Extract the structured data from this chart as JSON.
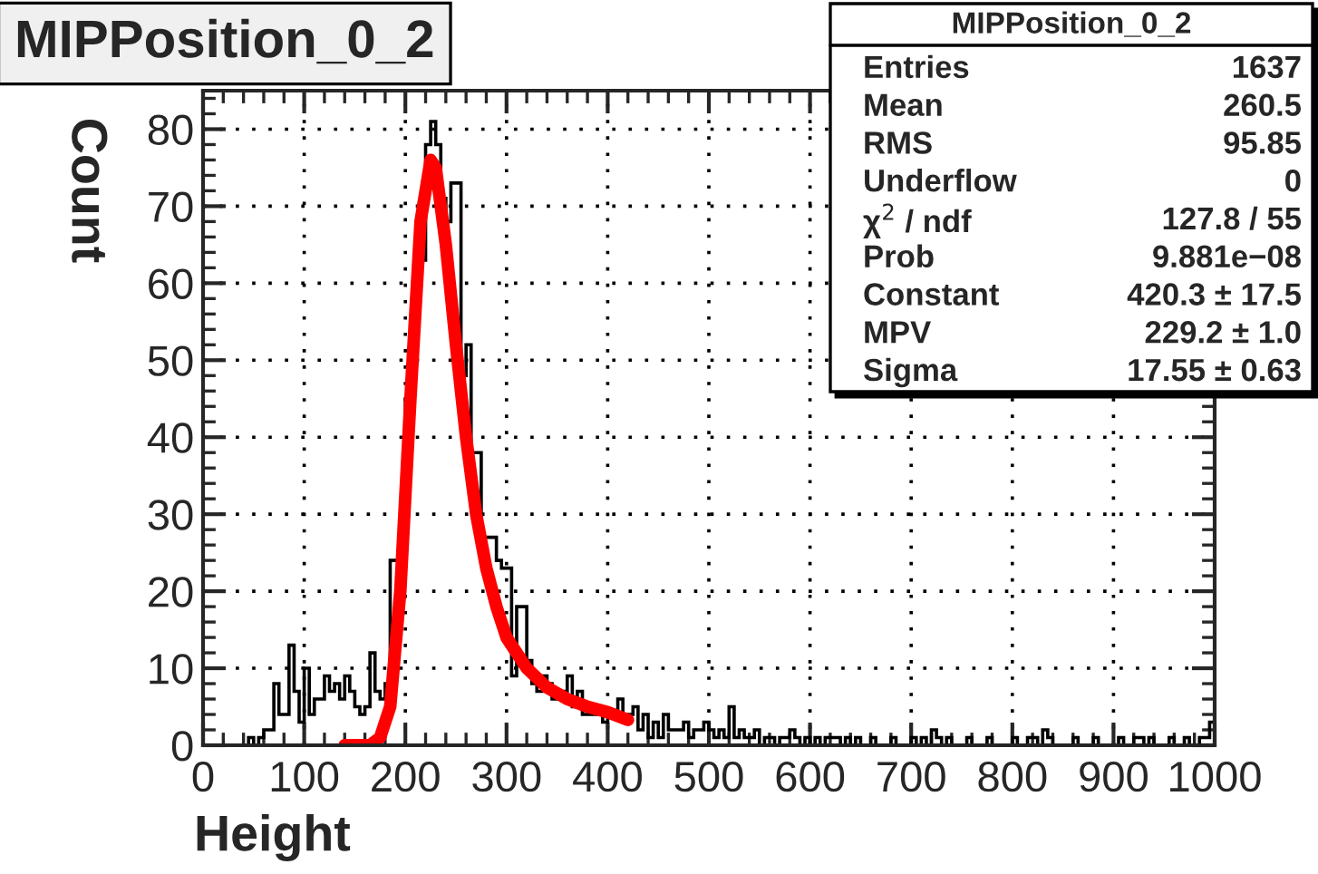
{
  "chart_data": {
    "type": "histogram",
    "title": "MIPPosition_0_2",
    "xlabel": "Height",
    "ylabel": "Count",
    "bins": [
      0,
      5,
      10,
      15,
      20,
      25,
      30,
      35,
      40,
      45,
      50,
      55,
      60,
      65,
      70,
      75,
      80,
      85,
      90,
      95,
      100,
      105,
      110,
      115,
      120,
      125,
      130,
      135,
      140,
      145,
      150,
      155,
      160,
      165,
      170,
      175,
      180,
      185,
      190,
      195,
      200,
      205,
      210,
      215,
      220,
      225,
      230,
      235,
      240,
      245,
      250,
      255,
      260,
      265,
      270,
      275,
      280,
      285,
      290,
      295,
      300,
      305,
      310,
      315,
      320,
      325,
      330,
      335,
      340,
      345,
      350,
      355,
      360,
      365,
      370,
      375,
      380,
      385,
      390,
      395,
      400,
      405,
      410,
      415,
      420,
      425,
      430,
      435,
      440,
      445,
      450,
      455,
      460,
      465,
      470,
      475,
      480,
      485,
      490,
      495,
      500,
      505,
      510,
      515,
      520,
      525,
      530,
      535,
      540,
      545,
      550,
      555,
      560,
      565,
      570,
      575,
      580,
      585,
      590,
      595,
      600,
      605,
      610,
      615,
      620,
      625,
      630,
      635,
      640,
      645,
      650,
      655,
      660,
      665,
      670,
      675,
      680,
      685,
      690,
      695,
      700,
      705,
      710,
      715,
      720,
      725,
      730,
      735,
      740,
      745,
      750,
      755,
      760,
      765,
      770,
      775,
      780,
      785,
      790,
      795,
      800,
      805,
      810,
      815,
      820,
      825,
      830,
      835,
      840,
      845,
      850,
      855,
      860,
      865,
      870,
      875,
      880,
      885,
      890,
      895,
      900,
      905,
      910,
      915,
      920,
      925,
      930,
      935,
      940,
      945,
      950,
      955,
      960,
      965,
      970,
      975,
      980,
      985,
      990,
      995,
      1000
    ],
    "values": [
      0,
      0,
      0,
      0,
      0,
      0,
      0,
      0,
      0,
      1,
      0,
      1,
      2,
      2,
      8,
      4,
      4,
      13,
      7,
      3,
      10,
      4,
      6,
      6,
      9,
      7,
      8,
      6,
      9,
      7,
      5,
      4,
      5,
      12,
      7,
      6,
      8,
      24,
      24,
      24,
      45,
      55,
      63,
      63,
      78,
      81,
      78,
      71,
      68,
      73,
      73,
      48,
      52,
      38,
      38,
      27,
      27,
      27,
      24,
      23,
      23,
      9,
      18,
      18,
      11,
      8,
      7,
      9,
      8,
      6,
      6,
      7,
      9,
      5,
      7,
      4,
      4,
      4,
      4,
      3,
      4,
      4,
      6,
      3,
      4,
      5,
      2,
      4,
      1,
      3,
      1,
      4,
      2,
      2,
      2,
      3,
      1,
      2,
      2,
      3,
      2,
      1,
      2,
      1,
      5,
      1,
      2,
      1,
      1,
      2,
      0,
      1,
      1,
      0,
      1,
      1,
      2,
      1,
      0,
      1,
      0,
      1,
      0,
      1,
      1,
      1,
      0,
      1,
      0,
      1,
      0,
      0,
      1,
      0,
      0,
      0,
      1,
      0,
      0,
      0,
      1,
      0,
      1,
      0,
      2,
      1,
      0,
      1,
      0,
      0,
      0,
      1,
      0,
      0,
      0,
      1,
      0,
      0,
      0,
      0,
      1,
      0,
      0,
      1,
      1,
      0,
      2,
      1,
      0,
      0,
      0,
      0,
      1,
      0,
      0,
      0,
      1,
      0,
      0,
      0,
      0,
      1,
      0,
      0,
      1,
      1,
      0,
      1,
      0,
      0,
      0,
      1,
      0,
      0,
      1,
      0,
      0,
      1,
      1,
      3
    ],
    "color": "#000000",
    "series": [
      {
        "type": "line",
        "color": "#ff0000",
        "x": [
          140,
          165,
          175,
          185,
          195,
          205,
          215,
          225,
          230,
          240,
          250,
          260,
          270,
          280,
          290,
          300,
          310,
          320,
          340,
          360,
          380,
          400,
          420
        ],
        "values": [
          0,
          0,
          1,
          5,
          20,
          45,
          68,
          76,
          75,
          65,
          52,
          40,
          30,
          23,
          18,
          14,
          12,
          10,
          7.5,
          6,
          5,
          4.3,
          3.3
        ]
      }
    ],
    "xlim": [
      0,
      1000
    ],
    "xticks": [
      0,
      100,
      200,
      300,
      400,
      500,
      600,
      700,
      800,
      900,
      1000
    ],
    "ylim": [
      0,
      85
    ],
    "yticks": [
      0,
      10,
      20,
      30,
      40,
      50,
      60,
      70,
      80
    ],
    "grid": true,
    "annotations": [
      "MIPPosition_0_2",
      "Entries",
      "1637",
      "Mean",
      "260.5",
      "RMS",
      "95.85",
      "Underflow",
      "0",
      "χ$^{2}$ / ndf",
      "127.8 / 55",
      "Prob",
      "9.881e−08",
      "Constant",
      "420.3 ± 17.5",
      "MPV",
      "229.2 ± 1.0",
      "Sigma",
      "17.55 ± 0.63"
    ]
  }
}
